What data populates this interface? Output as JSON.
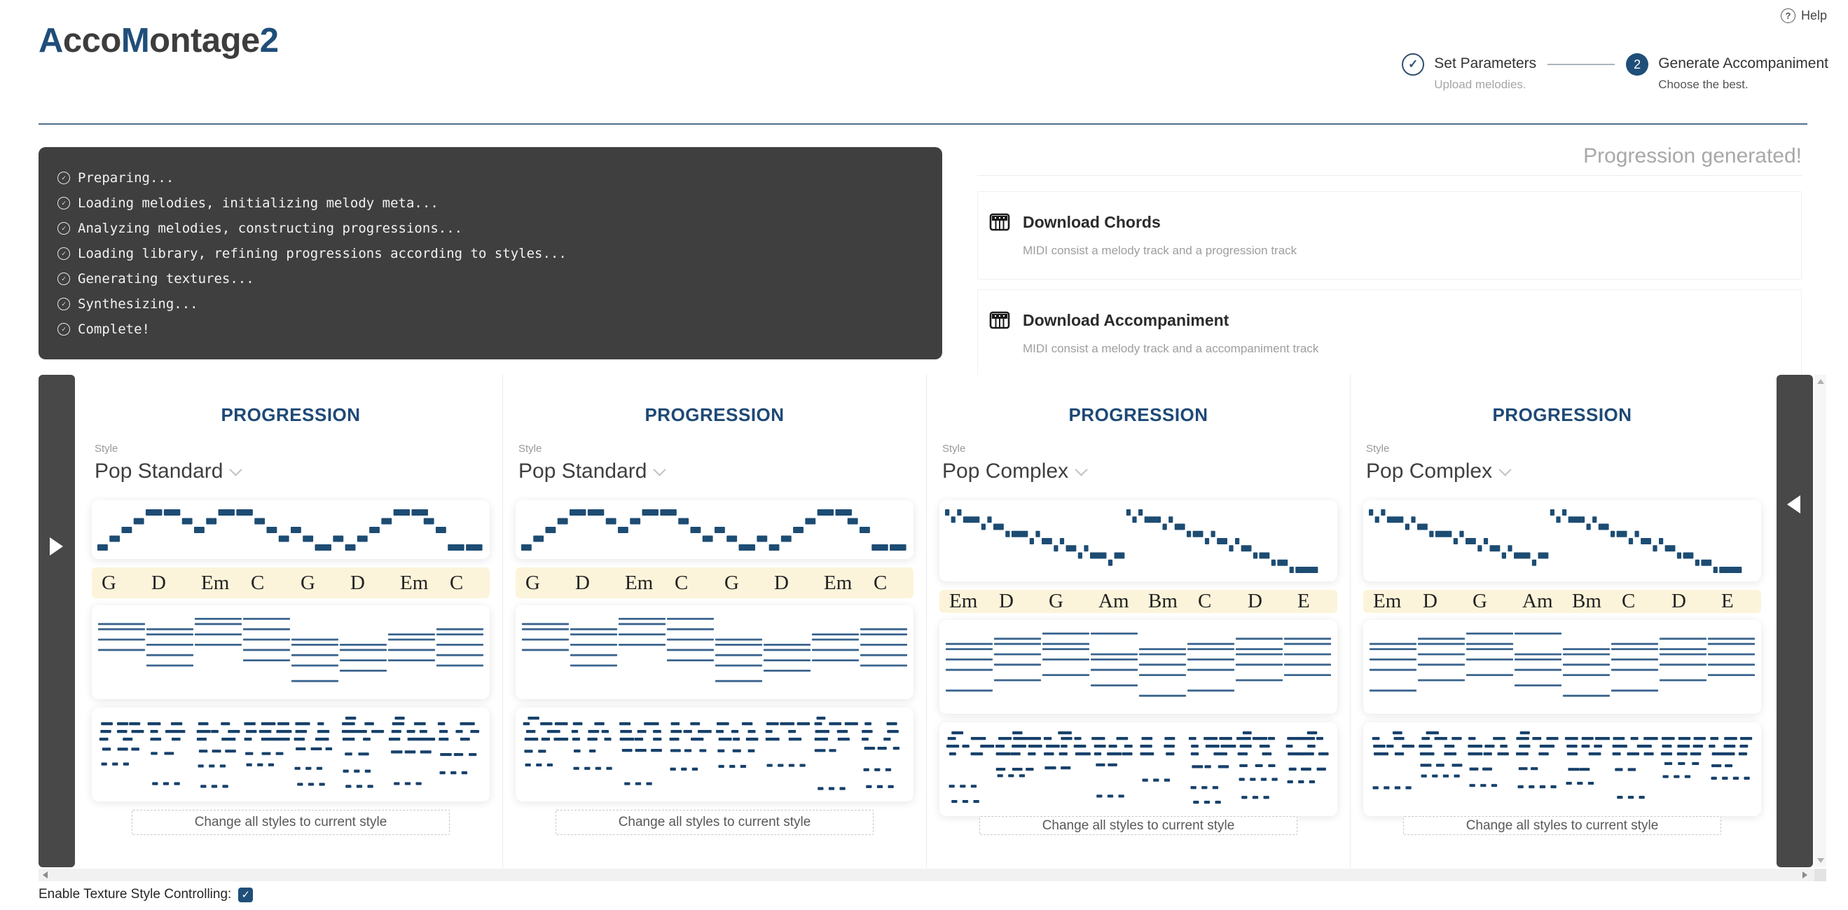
{
  "colors": {
    "navy_accent": "#1f4e79",
    "note_fill": "#1d4c73",
    "voicing_line": "#3a648e",
    "texture_fill": "#17416b",
    "chord_row_bg": "#fcf4da",
    "console_bg": "#3f3f3f"
  },
  "header": {
    "logo_segments": [
      {
        "text": "A",
        "accent": true
      },
      {
        "text": "cco",
        "accent": false
      },
      {
        "text": "M",
        "accent": true
      },
      {
        "text": "ontage",
        "accent": false
      },
      {
        "text": "2",
        "accent": true
      }
    ],
    "help": {
      "icon": "question-circle-icon",
      "label": "Help"
    },
    "stepper": {
      "steps": [
        {
          "state": "done",
          "icon": "check-icon",
          "title": "Set Parameters",
          "subtitle": "Upload melodies."
        },
        {
          "state": "active",
          "number": "2",
          "title": "Generate Accompaniment",
          "subtitle": "Choose the best."
        }
      ]
    }
  },
  "console": {
    "line_icon": "check-circle-icon",
    "check_glyph": "✓",
    "lines": [
      "Preparing...",
      "Loading melodies, initializing melody meta...",
      "Analyzing melodies, constructing progressions...",
      "Loading library, refining progressions according to styles...",
      "Generating textures...",
      "Synthesizing...",
      "Complete!"
    ]
  },
  "results": {
    "heading": "Progression generated!",
    "downloads": [
      {
        "icon": "piano-icon",
        "title": "Download Chords",
        "description": "MIDI consist a melody track and a progression track"
      },
      {
        "icon": "piano-icon",
        "title": "Download Accompaniment",
        "description": "MIDI consist a melody track and a accompaniment track"
      }
    ]
  },
  "carousel": {
    "cards": [
      {
        "title": "PROGRESSION",
        "style_label": "Style",
        "style": "Pop Standard",
        "chords": [
          "G",
          "D",
          "Em",
          "C",
          "G",
          "D",
          "Em",
          "C"
        ],
        "melody_pattern": "A",
        "voicing_pattern": "A",
        "texture_seed": 11,
        "button_label": "Change all styles to current style"
      },
      {
        "title": "PROGRESSION",
        "style_label": "Style",
        "style": "Pop Standard",
        "chords": [
          "G",
          "D",
          "Em",
          "C",
          "G",
          "D",
          "Em",
          "C"
        ],
        "melody_pattern": "A",
        "voicing_pattern": "A",
        "texture_seed": 12,
        "button_label": "Change all styles to current style"
      },
      {
        "title": "PROGRESSION",
        "style_label": "Style",
        "style": "Pop Complex",
        "chords": [
          "Em",
          "D",
          "G",
          "Am",
          "Bm",
          "C",
          "D",
          "E"
        ],
        "melody_pattern": "B",
        "voicing_pattern": "B",
        "texture_seed": 23,
        "button_label": "Change all styles to current style"
      },
      {
        "title": "PROGRESSION",
        "style_label": "Style",
        "style": "Pop Complex",
        "chords": [
          "Em",
          "D",
          "G",
          "Am",
          "Bm",
          "C",
          "D",
          "E"
        ],
        "melody_pattern": "B",
        "voicing_pattern": "B",
        "texture_seed": 24,
        "button_label": "Change all styles to current style"
      }
    ],
    "patterns": {
      "melody": {
        "A": {
          "height": 64,
          "pitch_max": 4,
          "notes": [
            [
              0,
              2,
              0
            ],
            [
              2,
              2,
              1
            ],
            [
              4,
              2,
              2
            ],
            [
              6,
              2,
              3
            ],
            [
              8,
              3,
              4
            ],
            [
              11,
              3,
              4
            ],
            [
              14,
              2,
              3
            ],
            [
              16,
              2,
              2
            ],
            [
              18,
              2,
              3
            ],
            [
              20,
              3,
              4
            ],
            [
              23,
              3,
              4
            ],
            [
              26,
              2,
              3
            ],
            [
              28,
              2,
              2
            ],
            [
              30,
              2,
              1
            ],
            [
              32,
              2,
              2
            ],
            [
              34,
              2,
              1
            ],
            [
              36,
              3,
              0
            ],
            [
              39,
              2,
              1
            ],
            [
              41,
              2,
              0
            ],
            [
              43,
              2,
              1
            ],
            [
              45,
              2,
              2
            ],
            [
              47,
              2,
              3
            ],
            [
              49,
              3,
              4
            ],
            [
              52,
              3,
              4
            ],
            [
              54,
              2,
              3
            ],
            [
              56,
              2,
              2
            ],
            [
              58,
              3,
              0
            ],
            [
              61,
              3,
              0
            ]
          ]
        },
        "B": {
          "height": 96,
          "pitch_max": 8,
          "notes": [
            [
              0,
              1,
              8
            ],
            [
              1,
              1,
              7
            ],
            [
              2,
              1,
              8
            ],
            [
              3,
              3,
              7
            ],
            [
              6,
              1,
              6
            ],
            [
              7,
              1,
              7
            ],
            [
              8,
              2,
              6
            ],
            [
              10,
              1,
              5
            ],
            [
              11,
              3,
              5
            ],
            [
              14,
              1,
              4
            ],
            [
              15,
              1,
              5
            ],
            [
              16,
              2,
              4
            ],
            [
              18,
              1,
              3
            ],
            [
              19,
              1,
              4
            ],
            [
              20,
              2,
              3
            ],
            [
              22,
              1,
              2
            ],
            [
              23,
              1,
              3
            ],
            [
              24,
              3,
              2
            ],
            [
              27,
              1,
              1
            ],
            [
              28,
              2,
              2
            ],
            [
              30,
              1,
              8
            ],
            [
              31,
              1,
              7
            ],
            [
              32,
              1,
              8
            ],
            [
              33,
              3,
              7
            ],
            [
              36,
              1,
              6
            ],
            [
              37,
              1,
              7
            ],
            [
              38,
              2,
              6
            ],
            [
              40,
              1,
              5
            ],
            [
              41,
              2,
              5
            ],
            [
              43,
              1,
              4
            ],
            [
              44,
              1,
              5
            ],
            [
              45,
              2,
              4
            ],
            [
              47,
              1,
              3
            ],
            [
              48,
              1,
              4
            ],
            [
              49,
              2,
              3
            ],
            [
              51,
              1,
              2
            ],
            [
              52,
              2,
              2
            ],
            [
              54,
              1,
              1
            ],
            [
              55,
              2,
              1
            ],
            [
              57,
              1,
              0
            ],
            [
              58,
              4,
              0
            ]
          ]
        }
      },
      "voicing": {
        "A": [
          [
            1,
            2,
            4,
            6
          ],
          [
            2,
            3,
            5,
            7,
            9
          ],
          [
            0,
            1,
            3,
            5
          ],
          [
            0,
            2,
            4,
            6,
            8
          ],
          [
            4,
            5,
            7,
            9,
            12
          ],
          [
            5,
            6,
            8,
            10
          ],
          [
            3,
            4,
            6,
            8
          ],
          [
            2,
            3,
            5,
            7,
            9
          ]
        ],
        "B": [
          [
            2,
            3,
            5,
            7,
            11
          ],
          [
            1,
            2,
            4,
            6,
            9
          ],
          [
            0,
            2,
            3,
            5,
            8
          ],
          [
            0,
            4,
            5,
            7,
            10
          ],
          [
            3,
            4,
            6,
            8,
            12
          ],
          [
            2,
            3,
            5,
            7,
            11
          ],
          [
            1,
            3,
            4,
            6,
            9
          ],
          [
            1,
            2,
            4,
            6,
            8
          ]
        ]
      }
    },
    "nav": {
      "left_arrow": "arrow-right-icon",
      "right_arrow": "arrow-left-icon"
    }
  },
  "footer": {
    "toggle_label": "Enable Texture Style Controlling:",
    "toggle_checked": true,
    "check_glyph": "✓"
  }
}
